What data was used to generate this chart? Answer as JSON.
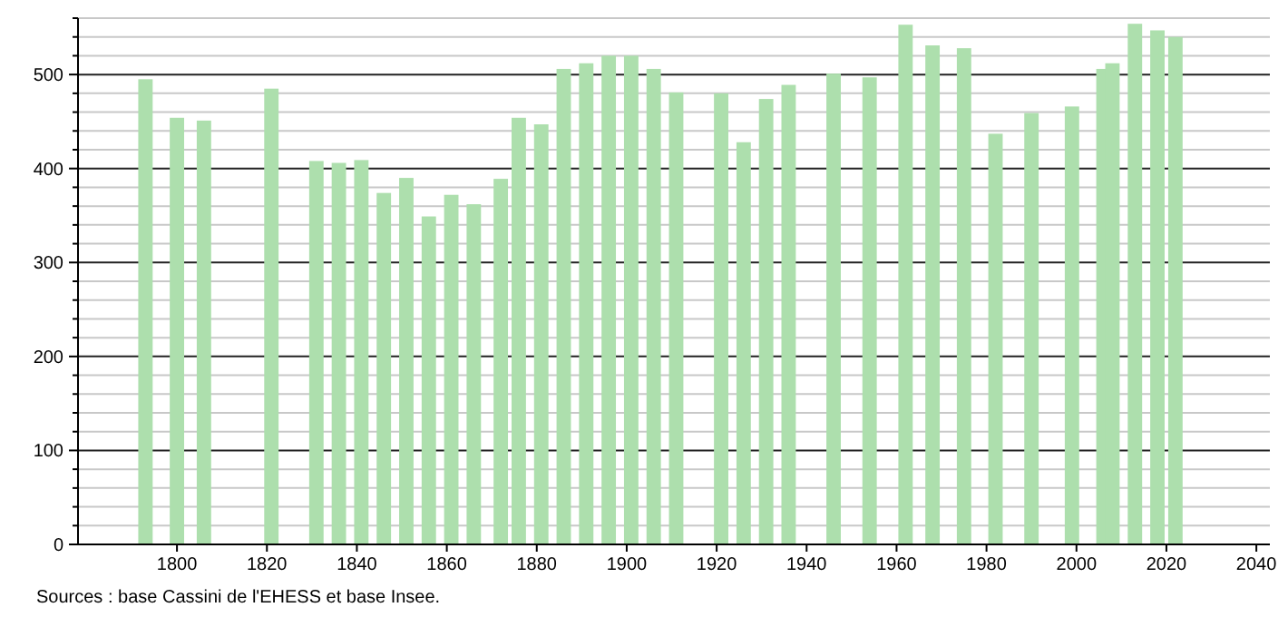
{
  "chart_data": {
    "type": "bar",
    "color": "#addfad",
    "x": [
      1793,
      1800,
      1806,
      1821,
      1831,
      1836,
      1841,
      1846,
      1851,
      1856,
      1861,
      1866,
      1872,
      1876,
      1881,
      1886,
      1891,
      1896,
      1901,
      1906,
      1911,
      1921,
      1926,
      1931,
      1936,
      1946,
      1954,
      1962,
      1968,
      1975,
      1982,
      1990,
      1999,
      2006,
      2008,
      2013,
      2018,
      2022
    ],
    "values": [
      495,
      454,
      451,
      485,
      408,
      406,
      409,
      374,
      390,
      349,
      372,
      362,
      389,
      454,
      447,
      506,
      512,
      520,
      520,
      506,
      481,
      480,
      428,
      474,
      489,
      501,
      497,
      553,
      531,
      528,
      437,
      459,
      466,
      506,
      512,
      554,
      547,
      540
    ],
    "xlim": [
      1778,
      2043
    ],
    "ylim": [
      0,
      560
    ],
    "xticks": [
      1800,
      1820,
      1840,
      1860,
      1880,
      1900,
      1920,
      1940,
      1960,
      1980,
      2000,
      2020,
      2040
    ],
    "yticks": [
      0,
      {
        "value": 20,
        "label": null
      },
      {
        "value": 40,
        "label": null
      },
      {
        "value": 60,
        "label": null
      },
      {
        "value": 80,
        "label": null
      },
      100,
      {
        "value": 120,
        "label": null
      },
      {
        "value": 140,
        "label": null
      },
      {
        "value": 160,
        "label": null
      },
      {
        "value": 180,
        "label": null
      },
      200,
      {
        "value": 220,
        "label": null
      },
      {
        "value": 240,
        "label": null
      },
      {
        "value": 260,
        "label": null
      },
      {
        "value": 280,
        "label": null
      },
      300,
      {
        "value": 320,
        "label": null
      },
      {
        "value": 340,
        "label": null
      },
      {
        "value": 360,
        "label": null
      },
      {
        "value": 380,
        "label": null
      },
      400,
      {
        "value": 420,
        "label": null
      },
      {
        "value": 440,
        "label": null
      },
      {
        "value": 460,
        "label": null
      },
      {
        "value": 480,
        "label": null
      },
      500,
      {
        "value": 520,
        "label": null
      },
      {
        "value": 540,
        "label": null
      },
      {
        "value": 560,
        "label": null
      }
    ],
    "grid": "y",
    "annotations": [
      "Sources : base Cassini de l'EHESS et base Insee."
    ]
  }
}
